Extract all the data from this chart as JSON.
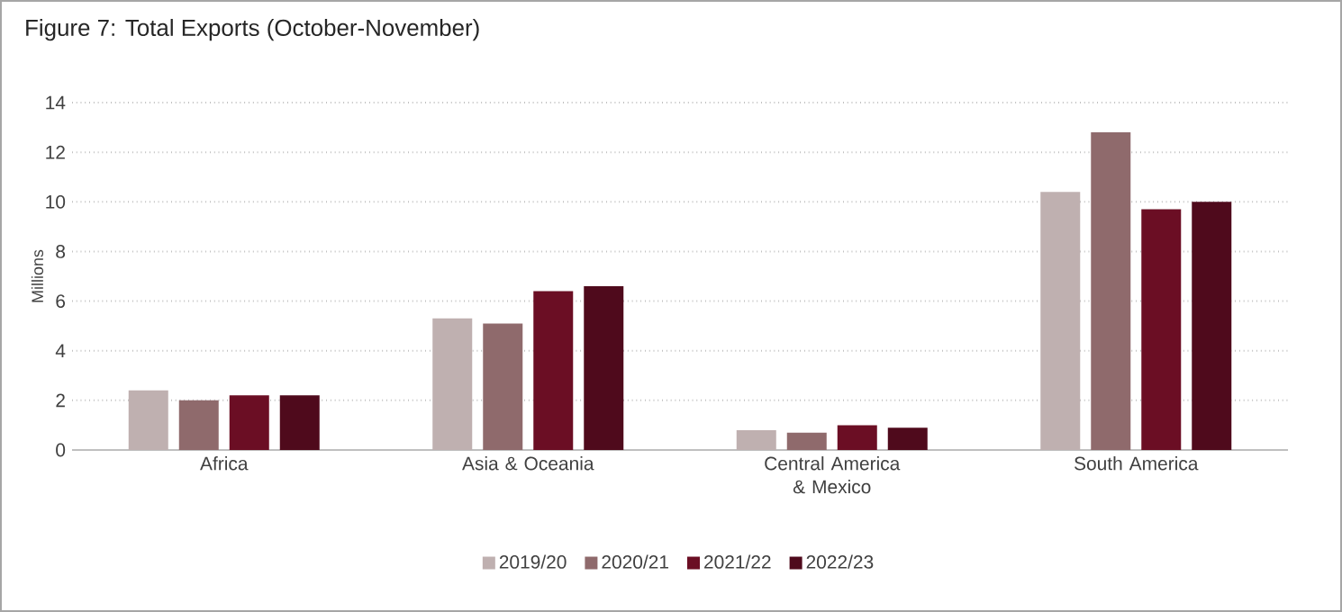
{
  "chart_data": {
    "type": "bar",
    "title": "Figure 7: Total Exports (October-November)",
    "ylabel": "Millions",
    "categories": [
      "Africa",
      "Asia & Oceania",
      "Central America & Mexico",
      "South America"
    ],
    "series": [
      {
        "name": "2019/20",
        "color": "#bfb0b0",
        "values": [
          2.4,
          5.3,
          0.8,
          10.4
        ]
      },
      {
        "name": "2020/21",
        "color": "#8f6a6c",
        "values": [
          2.0,
          5.1,
          0.7,
          12.8
        ]
      },
      {
        "name": "2021/22",
        "color": "#6b0e24",
        "values": [
          2.2,
          6.4,
          1.0,
          9.7
        ]
      },
      {
        "name": "2022/23",
        "color": "#4f0a1c",
        "values": [
          2.2,
          6.6,
          0.9,
          10.0
        ]
      }
    ],
    "ylim": [
      0,
      14
    ],
    "yticks": [
      0,
      2,
      4,
      6,
      8,
      10,
      12,
      14
    ],
    "grid": "y",
    "legend": "bottom"
  }
}
